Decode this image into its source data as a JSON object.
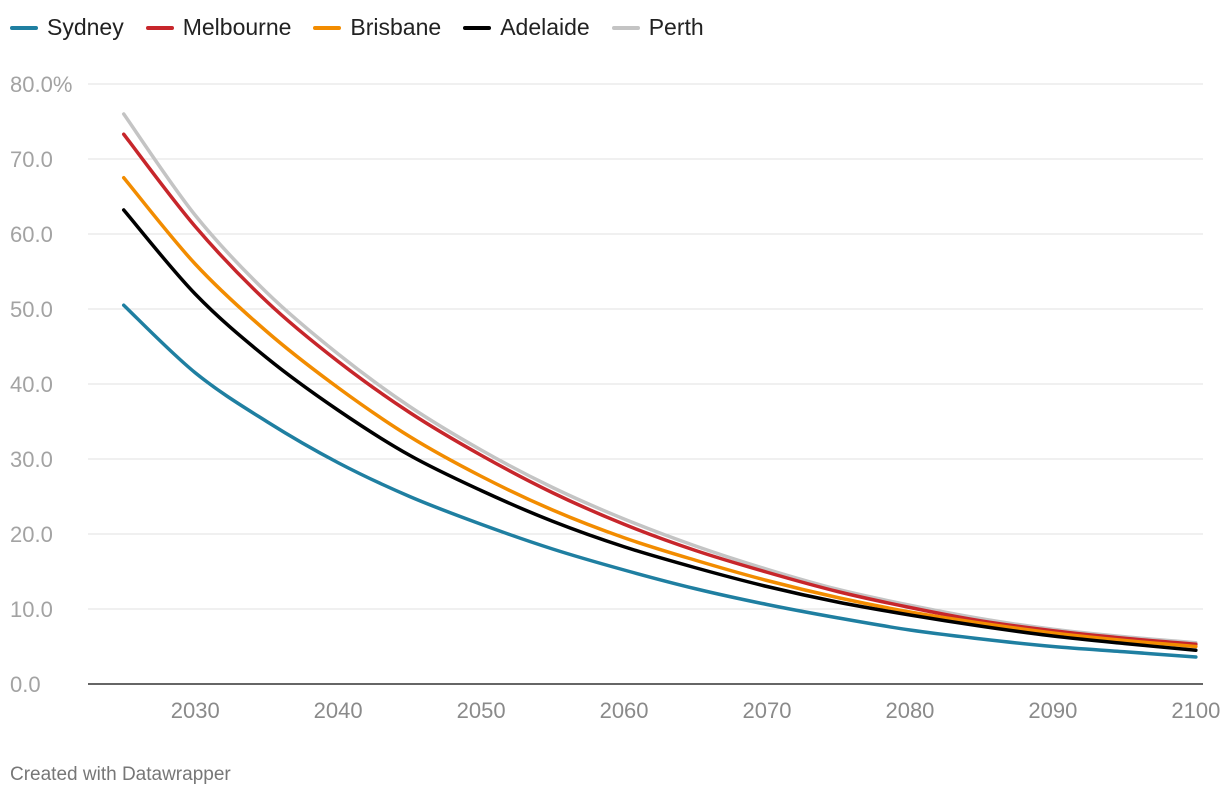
{
  "chart_data": {
    "type": "line",
    "title": "",
    "xlabel": "",
    "ylabel": "",
    "x": [
      2025,
      2030,
      2035,
      2040,
      2045,
      2050,
      2055,
      2060,
      2065,
      2070,
      2075,
      2080,
      2085,
      2090,
      2095,
      2100
    ],
    "xlim": [
      2022.5,
      2100.5
    ],
    "ylim": [
      0,
      80
    ],
    "x_ticks": [
      {
        "value": 2030,
        "label": "2030"
      },
      {
        "value": 2040,
        "label": "2040"
      },
      {
        "value": 2050,
        "label": "2050"
      },
      {
        "value": 2060,
        "label": "2060"
      },
      {
        "value": 2070,
        "label": "2070"
      },
      {
        "value": 2080,
        "label": "2080"
      },
      {
        "value": 2090,
        "label": "2090"
      },
      {
        "value": 2100,
        "label": "2100"
      }
    ],
    "y_ticks": [
      {
        "value": 0,
        "label": "0.0"
      },
      {
        "value": 10,
        "label": "10.0"
      },
      {
        "value": 20,
        "label": "20.0"
      },
      {
        "value": 30,
        "label": "30.0"
      },
      {
        "value": 40,
        "label": "40.0"
      },
      {
        "value": 50,
        "label": "50.0"
      },
      {
        "value": 60,
        "label": "60.0"
      },
      {
        "value": 70,
        "label": "70.0"
      },
      {
        "value": 80,
        "label": "80.0%"
      }
    ],
    "grid": true,
    "legend_position": "top-left",
    "series": [
      {
        "name": "Sydney",
        "color": "#1f7fa1",
        "values": [
          50.5,
          41.5,
          35.0,
          29.5,
          25.0,
          21.3,
          18.0,
          15.2,
          12.7,
          10.6,
          8.8,
          7.2,
          6.0,
          5.0,
          4.3,
          3.6
        ]
      },
      {
        "name": "Melbourne",
        "color": "#c7262b",
        "values": [
          73.3,
          61.0,
          51.0,
          43.0,
          36.2,
          30.5,
          25.5,
          21.3,
          17.8,
          14.9,
          12.3,
          10.2,
          8.4,
          7.1,
          6.1,
          5.3
        ]
      },
      {
        "name": "Brisbane",
        "color": "#f28c00",
        "values": [
          67.5,
          56.0,
          47.0,
          39.5,
          33.0,
          27.7,
          23.2,
          19.5,
          16.5,
          13.8,
          11.5,
          9.6,
          8.1,
          6.8,
          5.8,
          5.0
        ]
      },
      {
        "name": "Adelaide",
        "color": "#000000",
        "values": [
          63.2,
          52.0,
          43.5,
          36.5,
          30.5,
          25.8,
          21.7,
          18.3,
          15.5,
          13.0,
          10.9,
          9.2,
          7.7,
          6.4,
          5.4,
          4.5
        ]
      },
      {
        "name": "Perth",
        "color": "#c4c4c4",
        "values": [
          76.0,
          62.5,
          52.2,
          44.0,
          37.0,
          31.2,
          26.2,
          22.0,
          18.4,
          15.3,
          12.6,
          10.5,
          8.7,
          7.3,
          6.3,
          5.5
        ]
      }
    ]
  },
  "legend": {
    "items": [
      {
        "label": "Sydney",
        "color": "#1f7fa1"
      },
      {
        "label": "Melbourne",
        "color": "#c7262b"
      },
      {
        "label": "Brisbane",
        "color": "#f28c00"
      },
      {
        "label": "Adelaide",
        "color": "#000000"
      },
      {
        "label": "Perth",
        "color": "#c4c4c4"
      }
    ]
  },
  "footer": {
    "credit": "Created with Datawrapper"
  }
}
